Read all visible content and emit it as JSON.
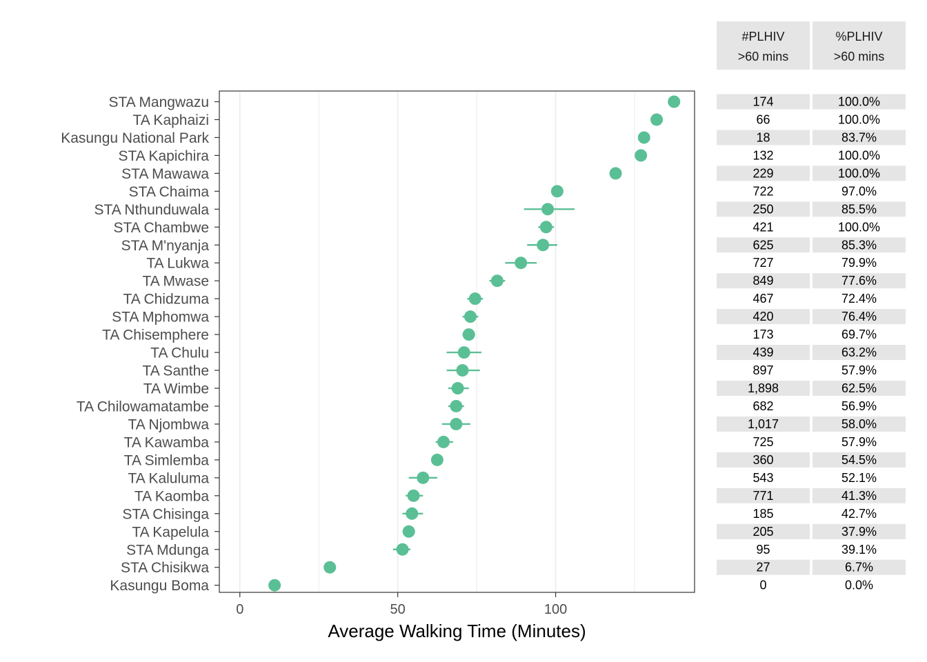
{
  "chart_data": {
    "type": "scatter",
    "subtype": "dot-with-error-bars",
    "xlabel": "Average Walking Time (Minutes)",
    "xlim": [
      -6.5,
      144
    ],
    "xticks": [
      0,
      50,
      100
    ],
    "grid": true,
    "colors": {
      "point": "#5bbf95",
      "panel_border": "#333333",
      "grid": "#ebebeb",
      "table_fill": "#e5e5e5"
    },
    "table_headers": [
      {
        "line1": "#PLHIV",
        "line2": ">60 mins"
      },
      {
        "line1": "%PLHIV",
        "line2": ">60 mins"
      }
    ],
    "rows": [
      {
        "label": "STA Mangwazu",
        "mean": 137.5,
        "low": 137.5,
        "high": 137.5,
        "plhiv": "174",
        "pct": "100.0%"
      },
      {
        "label": "TA Kaphaizi",
        "mean": 132.0,
        "low": 132.0,
        "high": 132.0,
        "plhiv": "66",
        "pct": "100.0%"
      },
      {
        "label": "Kasungu National Park",
        "mean": 128.0,
        "low": 128.0,
        "high": 128.0,
        "plhiv": "18",
        "pct": "83.7%"
      },
      {
        "label": "STA Kapichira",
        "mean": 127.0,
        "low": 127.0,
        "high": 127.0,
        "plhiv": "132",
        "pct": "100.0%"
      },
      {
        "label": "STA Mawawa",
        "mean": 119.0,
        "low": 119.0,
        "high": 119.0,
        "plhiv": "229",
        "pct": "100.0%"
      },
      {
        "label": "STA Chaima",
        "mean": 100.5,
        "low": 100.5,
        "high": 100.5,
        "plhiv": "722",
        "pct": "97.0%"
      },
      {
        "label": "STA Nthunduwala",
        "mean": 97.5,
        "low": 90.0,
        "high": 106.0,
        "plhiv": "250",
        "pct": "85.5%"
      },
      {
        "label": "STA Chambwe",
        "mean": 97.0,
        "low": 94.5,
        "high": 99.5,
        "plhiv": "421",
        "pct": "100.0%"
      },
      {
        "label": "STA M'nyanja",
        "mean": 96.0,
        "low": 91.0,
        "high": 100.5,
        "plhiv": "625",
        "pct": "85.3%"
      },
      {
        "label": "TA Lukwa",
        "mean": 89.0,
        "low": 84.0,
        "high": 94.0,
        "plhiv": "727",
        "pct": "79.9%"
      },
      {
        "label": "TA Mwase",
        "mean": 81.5,
        "low": 79.0,
        "high": 84.0,
        "plhiv": "849",
        "pct": "77.6%"
      },
      {
        "label": "TA Chidzuma",
        "mean": 74.5,
        "low": 72.0,
        "high": 77.0,
        "plhiv": "467",
        "pct": "72.4%"
      },
      {
        "label": "STA Mphomwa",
        "mean": 73.0,
        "low": 70.5,
        "high": 75.5,
        "plhiv": "420",
        "pct": "76.4%"
      },
      {
        "label": "TA Chisemphere",
        "mean": 72.5,
        "low": 70.5,
        "high": 74.5,
        "plhiv": "173",
        "pct": "69.7%"
      },
      {
        "label": "TA Chulu",
        "mean": 71.0,
        "low": 65.5,
        "high": 76.5,
        "plhiv": "439",
        "pct": "63.2%"
      },
      {
        "label": "TA Santhe",
        "mean": 70.5,
        "low": 65.5,
        "high": 76.0,
        "plhiv": "897",
        "pct": "57.9%"
      },
      {
        "label": "TA Wimbe",
        "mean": 69.0,
        "low": 66.0,
        "high": 72.5,
        "plhiv": "1,898",
        "pct": "62.5%"
      },
      {
        "label": "TA Chilowamatambe",
        "mean": 68.5,
        "low": 66.0,
        "high": 71.0,
        "plhiv": "682",
        "pct": "56.9%"
      },
      {
        "label": "TA Njombwa",
        "mean": 68.5,
        "low": 64.0,
        "high": 73.0,
        "plhiv": "1,017",
        "pct": "58.0%"
      },
      {
        "label": "TA Kawamba",
        "mean": 64.5,
        "low": 62.0,
        "high": 67.5,
        "plhiv": "725",
        "pct": "57.9%"
      },
      {
        "label": "TA Simlemba",
        "mean": 62.5,
        "low": 62.5,
        "high": 62.5,
        "plhiv": "360",
        "pct": "54.5%"
      },
      {
        "label": "TA Kaluluma",
        "mean": 58.0,
        "low": 53.5,
        "high": 62.5,
        "plhiv": "543",
        "pct": "52.1%"
      },
      {
        "label": "TA Kaomba",
        "mean": 55.0,
        "low": 52.5,
        "high": 58.0,
        "plhiv": "771",
        "pct": "41.3%"
      },
      {
        "label": "STA Chisinga",
        "mean": 54.5,
        "low": 51.5,
        "high": 58.0,
        "plhiv": "185",
        "pct": "42.7%"
      },
      {
        "label": "TA Kapelula",
        "mean": 53.5,
        "low": 51.5,
        "high": 55.5,
        "plhiv": "205",
        "pct": "37.9%"
      },
      {
        "label": "STA Mdunga",
        "mean": 51.5,
        "low": 48.5,
        "high": 54.0,
        "plhiv": "95",
        "pct": "39.1%"
      },
      {
        "label": "STA Chisikwa",
        "mean": 28.5,
        "low": 28.5,
        "high": 28.5,
        "plhiv": "27",
        "pct": "6.7%"
      },
      {
        "label": "Kasungu Boma",
        "mean": 11.0,
        "low": 11.0,
        "high": 11.0,
        "plhiv": "0",
        "pct": "0.0%"
      }
    ]
  }
}
